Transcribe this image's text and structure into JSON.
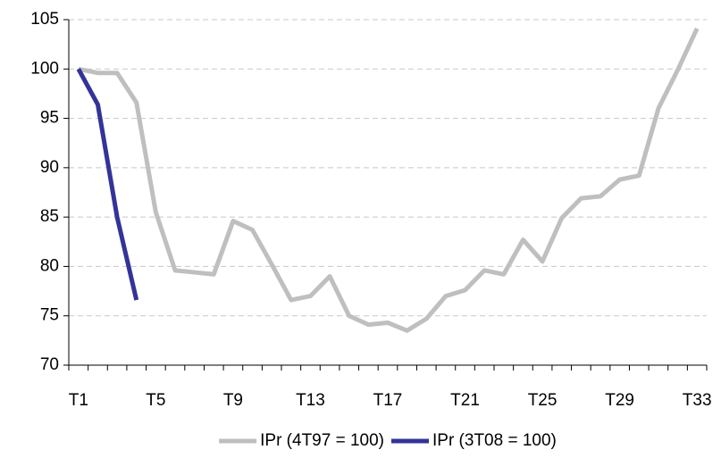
{
  "chart_data": {
    "type": "line",
    "categories": [
      "T1",
      null,
      null,
      null,
      "T5",
      null,
      null,
      null,
      "T9",
      null,
      null,
      null,
      "T13",
      null,
      null,
      null,
      "T17",
      null,
      null,
      null,
      "T21",
      null,
      null,
      null,
      "T25",
      null,
      null,
      null,
      "T29",
      null,
      null,
      null,
      "T33"
    ],
    "series": [
      {
        "name": "IPr (4T97 = 100)",
        "color": "#bfbfbf",
        "values": [
          100,
          99.6,
          99.6,
          96.6,
          85.5,
          79.6,
          79.4,
          79.2,
          84.6,
          83.7,
          80.2,
          76.6,
          77.0,
          79.0,
          75.0,
          74.1,
          74.3,
          73.5,
          74.7,
          77.0,
          77.6,
          79.6,
          79.2,
          82.7,
          80.5,
          84.9,
          86.9,
          87.1,
          88.8,
          89.2,
          96.0,
          99.9,
          104.1
        ]
      },
      {
        "name": "IPr (3T08 = 100)",
        "color": "#333399",
        "values": [
          100,
          96.4,
          85.0,
          76.6,
          null,
          null,
          null,
          null,
          null,
          null,
          null,
          null,
          null,
          null,
          null,
          null,
          null,
          null,
          null,
          null,
          null,
          null,
          null,
          null,
          null,
          null,
          null,
          null,
          null,
          null,
          null,
          null,
          null
        ]
      }
    ],
    "ylim": [
      70,
      105
    ],
    "yticks": [
      70,
      75,
      80,
      85,
      90,
      95,
      100,
      105
    ],
    "grid": true,
    "legend": "bottom"
  }
}
